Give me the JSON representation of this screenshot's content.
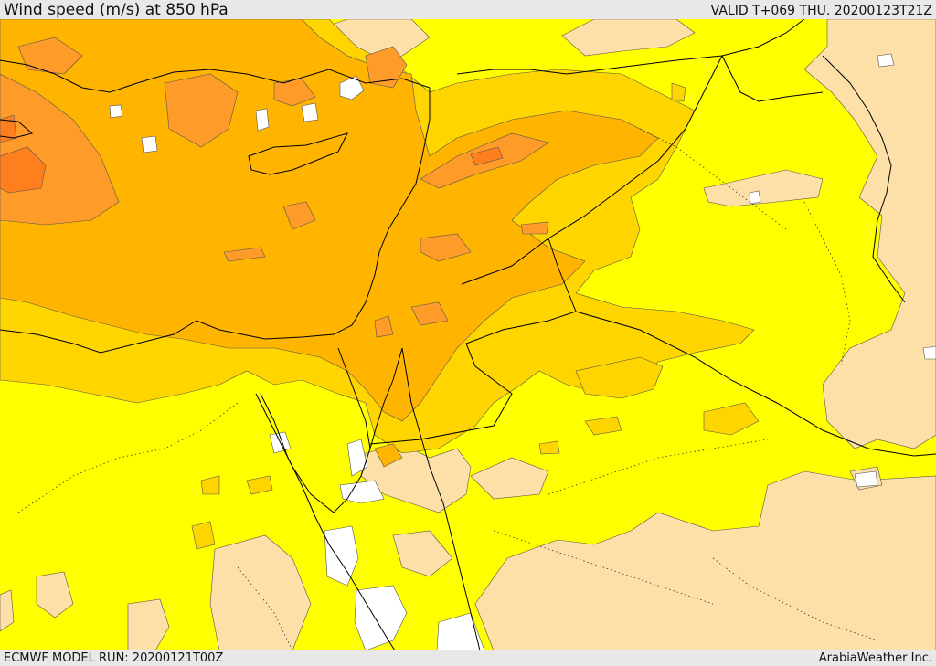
{
  "header": {
    "title": "Wind speed (m/s) at 850 hPa",
    "valid_time": "VALID T+069 THU. 20200123T21Z"
  },
  "footer": {
    "model_run": "ECMWF MODEL RUN: 20200121T00Z",
    "credit": "ArabiaWeather Inc."
  },
  "map": {
    "parameter": "wind speed",
    "level": "850 hPa",
    "unit": "m/s",
    "colors": {
      "calm": "#ffffff",
      "light": "#fde0a8",
      "moderate": "#ffff00",
      "fresh": "#ffd500",
      "strong": "#ffb400",
      "very_strong": "#ff9b28",
      "stormy": "#ff7f1e",
      "boundary": "#000000"
    }
  }
}
